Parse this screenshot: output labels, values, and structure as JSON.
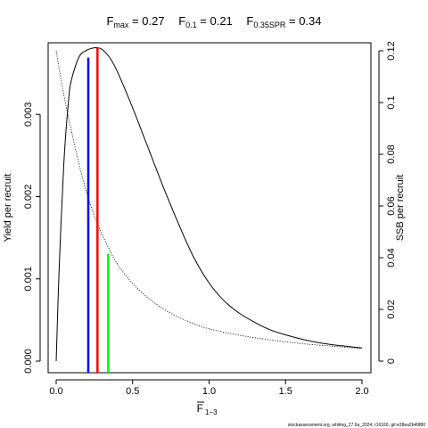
{
  "title": {
    "fmax_main": "F",
    "fmax_sub": "max",
    "fmax_rest": " = 0.27",
    "f01_main": "F",
    "f01_sub": "0.1",
    "f01_rest": " = 0.21",
    "fspr_main": "F",
    "fspr_sub": "0.35SPR",
    "fspr_rest": " = 0.34"
  },
  "axes": {
    "ylabel_left": "Yield per recruit",
    "ylabel_right": "SSB per recruit",
    "xlabel_main": "F",
    "xlabel_sub": "1−3"
  },
  "footer": "stockassessment.org, whiting_27.6a_2024, r16160, git:e38ea2b49f80",
  "colors": {
    "fmax": "#ff0000",
    "f01": "#0000ff",
    "fspr": "#00ff00",
    "ypr": "#000000",
    "spr": "#000000"
  },
  "chart_data": {
    "type": "line",
    "x_range": [
      0,
      2
    ],
    "y_left_range": [
      0,
      0.0038
    ],
    "y_right_range": [
      0,
      0.12
    ],
    "x_ticks": [
      0,
      0.5,
      1,
      1.5,
      2
    ],
    "x_tick_labels": [
      "0.0",
      "0.5",
      "1.0",
      "1.5",
      "2.0"
    ],
    "y_left_ticks": [
      0,
      0.001,
      0.002,
      0.003
    ],
    "y_left_tick_labels": [
      "0.000",
      "0.001",
      "0.002",
      "0.003"
    ],
    "y_right_ticks": [
      0,
      0.02,
      0.04,
      0.06,
      0.08,
      0.1,
      0.12
    ],
    "y_right_tick_labels": [
      "0",
      "0.02",
      "0.04",
      "0.06",
      "0.08",
      "0.1",
      "0.12"
    ],
    "grid": false,
    "series": [
      {
        "name": "Yield per recruit",
        "axis": "left",
        "style": "solid",
        "x": [
          0,
          0.02,
          0.05,
          0.08,
          0.1,
          0.15,
          0.2,
          0.25,
          0.27,
          0.3,
          0.35,
          0.4,
          0.5,
          0.6,
          0.7,
          0.8,
          0.9,
          1.0,
          1.1,
          1.2,
          1.3,
          1.4,
          1.5,
          1.6,
          1.7,
          1.8,
          1.9,
          2.0
        ],
        "y": [
          0,
          0.00115,
          0.0024,
          0.00315,
          0.00342,
          0.0037,
          0.00378,
          0.00381,
          0.00381,
          0.00379,
          0.00369,
          0.00352,
          0.00308,
          0.0026,
          0.00212,
          0.00167,
          0.00126,
          0.00095,
          0.00073,
          0.00058,
          0.00047,
          0.00038,
          0.00032,
          0.00027,
          0.00023,
          0.0002,
          0.00018,
          0.00016
        ]
      },
      {
        "name": "SSB per recruit",
        "axis": "right",
        "style": "dotted",
        "x": [
          0,
          0.05,
          0.1,
          0.15,
          0.2,
          0.25,
          0.3,
          0.35,
          0.4,
          0.5,
          0.6,
          0.7,
          0.8,
          0.9,
          1.0,
          1.2,
          1.4,
          1.6,
          1.8,
          2.0
        ],
        "y": [
          0.12,
          0.103,
          0.089,
          0.076,
          0.065,
          0.056,
          0.049,
          0.043,
          0.0375,
          0.03,
          0.0245,
          0.0202,
          0.017,
          0.0145,
          0.0125,
          0.01,
          0.0082,
          0.0068,
          0.0058,
          0.0049
        ]
      }
    ],
    "reference_lines": [
      {
        "name": "F0.1",
        "x": 0.21,
        "ytop": 0.00369,
        "axis": "left",
        "color": "#0000ff"
      },
      {
        "name": "Fmax",
        "x": 0.27,
        "ytop": 0.00381,
        "axis": "left",
        "color": "#ff0000"
      },
      {
        "name": "F0.35SPR",
        "x": 0.34,
        "ytop": 0.0415,
        "axis": "right",
        "color": "#00ff00"
      }
    ]
  }
}
